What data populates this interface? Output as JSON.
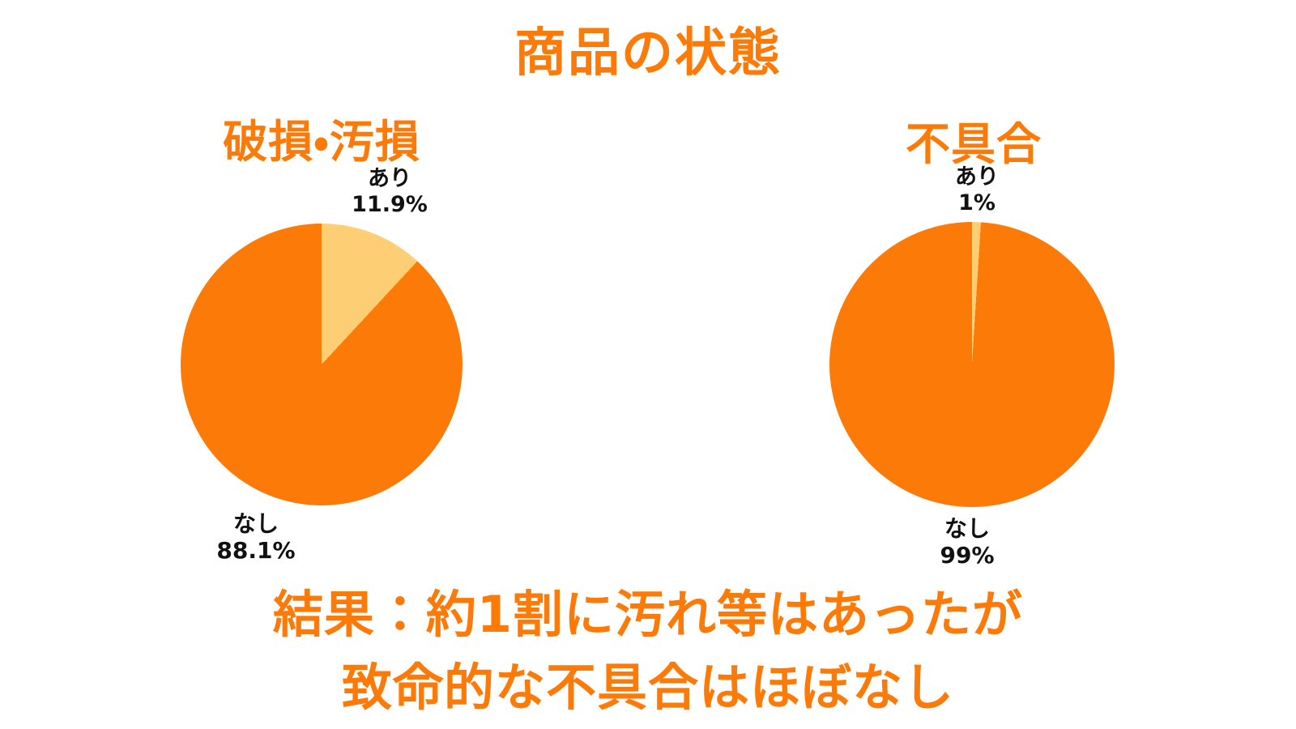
{
  "page": {
    "title": "商品の状態",
    "background": "#ffffff",
    "accent_color": "#FB7A08",
    "light_slice_color": "#FDCE74",
    "label_color": "#111111"
  },
  "chart_data": [
    {
      "type": "pie",
      "title": "破損・汚損",
      "start_angle_deg": 0,
      "direction": "clockwise",
      "legend": "none",
      "slices": [
        {
          "label": "あり",
          "value_pct": 11.9,
          "display": "11.9%",
          "color": "#FDCE74"
        },
        {
          "label": "なし",
          "value_pct": 88.1,
          "display": "88.1%",
          "color": "#FB7A08"
        }
      ]
    },
    {
      "type": "pie",
      "title": "不具合",
      "start_angle_deg": 0,
      "direction": "clockwise",
      "legend": "none",
      "slices": [
        {
          "label": "あり",
          "value_pct": 1,
          "display": "1%",
          "color": "#FDCE74"
        },
        {
          "label": "なし",
          "value_pct": 99,
          "display": "99%",
          "color": "#FB7A08"
        }
      ]
    }
  ],
  "conclusion": {
    "line1": "結果：約1割に汚れ等はあったが",
    "line2": "致命的な不具合はほぼなし"
  }
}
